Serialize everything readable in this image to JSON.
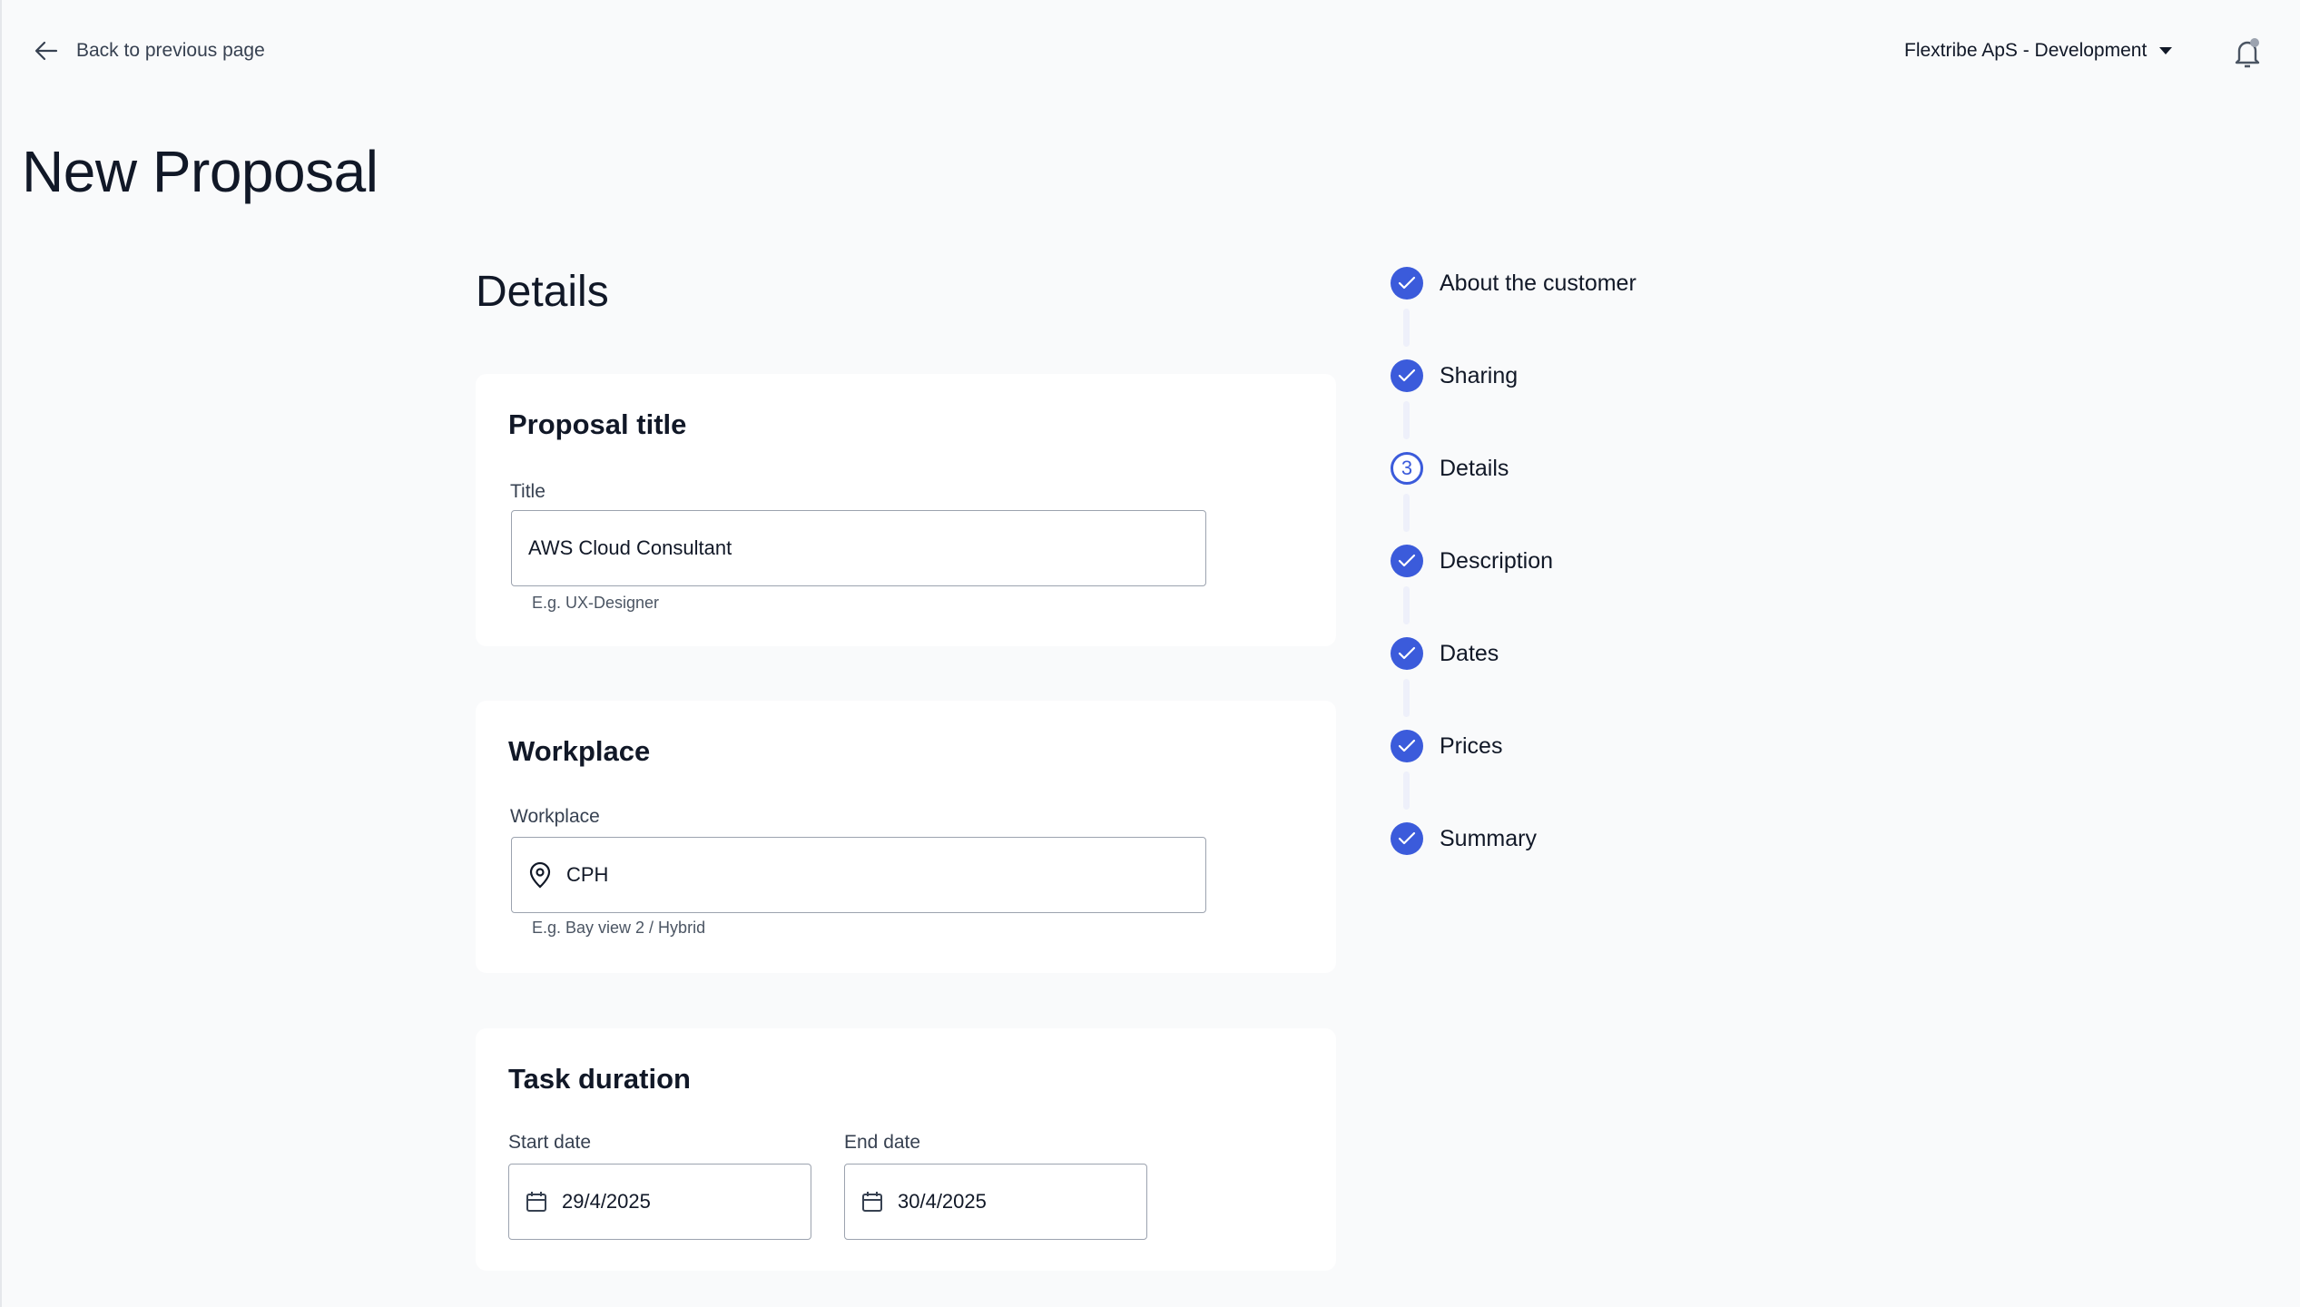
{
  "header": {
    "back_label": "Back to previous page",
    "org_label": "Flextribe ApS - Development"
  },
  "page_title": "New Proposal",
  "section_title": "Details",
  "cards": {
    "proposal": {
      "heading": "Proposal title",
      "label": "Title",
      "value": "AWS Cloud Consultant",
      "hint": "E.g. UX-Designer"
    },
    "workplace": {
      "heading": "Workplace",
      "label": "Workplace",
      "value": "CPH",
      "hint": "E.g. Bay view 2 / Hybrid"
    },
    "duration": {
      "heading": "Task duration",
      "start_label": "Start date",
      "start_value": "29/4/2025",
      "end_label": "End date",
      "end_value": "30/4/2025"
    }
  },
  "steps": [
    {
      "label": "About the customer",
      "status": "done"
    },
    {
      "label": "Sharing",
      "status": "done"
    },
    {
      "label": "Details",
      "status": "current",
      "number": "3"
    },
    {
      "label": "Description",
      "status": "done"
    },
    {
      "label": "Dates",
      "status": "done"
    },
    {
      "label": "Prices",
      "status": "done"
    },
    {
      "label": "Summary",
      "status": "done"
    }
  ],
  "colors": {
    "accent": "#3b5bdb",
    "background": "#f9fafb"
  }
}
